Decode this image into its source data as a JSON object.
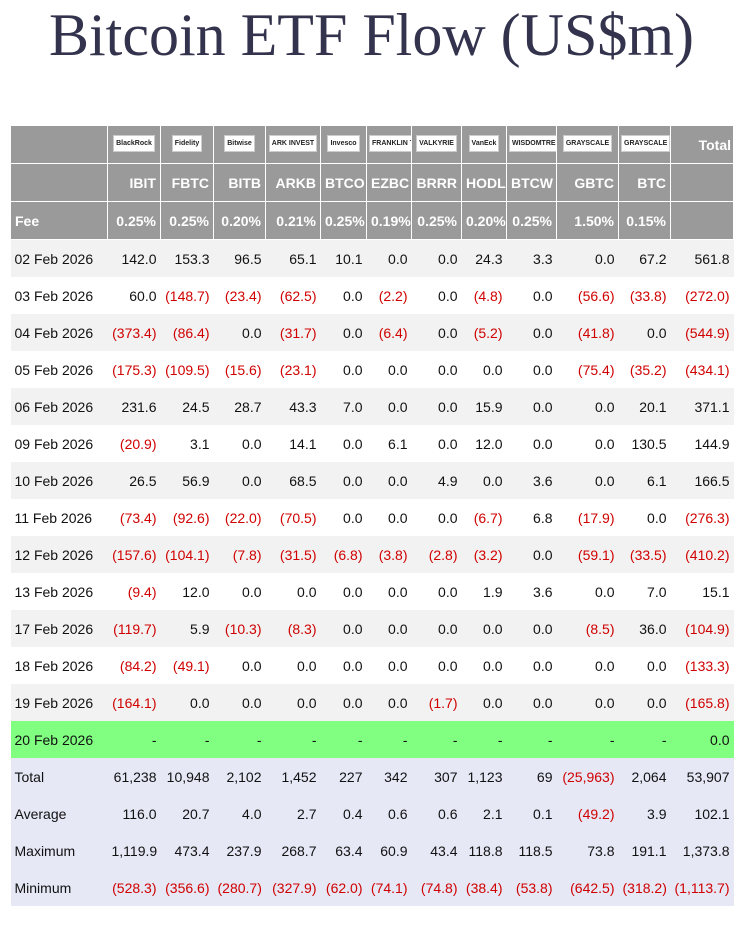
{
  "header": {
    "title": "Bitcoin ETF Flow (US$m)"
  },
  "table": {
    "logos": [
      "BlackRock",
      "Fidelity",
      "Bitwise",
      "ARK INVEST",
      "Invesco",
      "FRANKLIN TEMPLETON",
      "VALKYRIE",
      "VanEck",
      "WISDOMTREE",
      "GRAYSCALE",
      "GRAYSCALE"
    ],
    "total_header": "Total",
    "tickers": [
      "IBIT",
      "FBTC",
      "BITB",
      "ARKB",
      "BTCO",
      "EZBC",
      "BRRR",
      "HODL",
      "BTCW",
      "GBTC",
      "BTC"
    ],
    "fee_label": "Fee",
    "fees": [
      "0.25%",
      "0.25%",
      "0.20%",
      "0.21%",
      "0.25%",
      "0.19%",
      "0.25%",
      "0.20%",
      "0.25%",
      "1.50%",
      "0.15%"
    ],
    "rows": [
      [
        "02 Feb 2026",
        "142.0",
        "153.3",
        "96.5",
        "65.1",
        "10.1",
        "0.0",
        "0.0",
        "24.3",
        "3.3",
        "0.0",
        "67.2",
        "561.8"
      ],
      [
        "03 Feb 2026",
        "60.0",
        "(148.7)",
        "(23.4)",
        "(62.5)",
        "0.0",
        "(2.2)",
        "0.0",
        "(4.8)",
        "0.0",
        "(56.6)",
        "(33.8)",
        "(272.0)"
      ],
      [
        "04 Feb 2026",
        "(373.4)",
        "(86.4)",
        "0.0",
        "(31.7)",
        "0.0",
        "(6.4)",
        "0.0",
        "(5.2)",
        "0.0",
        "(41.8)",
        "0.0",
        "(544.9)"
      ],
      [
        "05 Feb 2026",
        "(175.3)",
        "(109.5)",
        "(15.6)",
        "(23.1)",
        "0.0",
        "0.0",
        "0.0",
        "0.0",
        "0.0",
        "(75.4)",
        "(35.2)",
        "(434.1)"
      ],
      [
        "06 Feb 2026",
        "231.6",
        "24.5",
        "28.7",
        "43.3",
        "7.0",
        "0.0",
        "0.0",
        "15.9",
        "0.0",
        "0.0",
        "20.1",
        "371.1"
      ],
      [
        "09 Feb 2026",
        "(20.9)",
        "3.1",
        "0.0",
        "14.1",
        "0.0",
        "6.1",
        "0.0",
        "12.0",
        "0.0",
        "0.0",
        "130.5",
        "144.9"
      ],
      [
        "10 Feb 2026",
        "26.5",
        "56.9",
        "0.0",
        "68.5",
        "0.0",
        "0.0",
        "4.9",
        "0.0",
        "3.6",
        "0.0",
        "6.1",
        "166.5"
      ],
      [
        "11 Feb 2026",
        "(73.4)",
        "(92.6)",
        "(22.0)",
        "(70.5)",
        "0.0",
        "0.0",
        "0.0",
        "(6.7)",
        "6.8",
        "(17.9)",
        "0.0",
        "(276.3)"
      ],
      [
        "12 Feb 2026",
        "(157.6)",
        "(104.1)",
        "(7.8)",
        "(31.5)",
        "(6.8)",
        "(3.8)",
        "(2.8)",
        "(3.2)",
        "0.0",
        "(59.1)",
        "(33.5)",
        "(410.2)"
      ],
      [
        "13 Feb 2026",
        "(9.4)",
        "12.0",
        "0.0",
        "0.0",
        "0.0",
        "0.0",
        "0.0",
        "1.9",
        "3.6",
        "0.0",
        "7.0",
        "15.1"
      ],
      [
        "17 Feb 2026",
        "(119.7)",
        "5.9",
        "(10.3)",
        "(8.3)",
        "0.0",
        "0.0",
        "0.0",
        "0.0",
        "0.0",
        "(8.5)",
        "36.0",
        "(104.9)"
      ],
      [
        "18 Feb 2026",
        "(84.2)",
        "(49.1)",
        "0.0",
        "0.0",
        "0.0",
        "0.0",
        "0.0",
        "0.0",
        "0.0",
        "0.0",
        "0.0",
        "(133.3)"
      ],
      [
        "19 Feb 2026",
        "(164.1)",
        "0.0",
        "0.0",
        "0.0",
        "0.0",
        "0.0",
        "(1.7)",
        "0.0",
        "0.0",
        "0.0",
        "0.0",
        "(165.8)"
      ],
      [
        "20 Feb 2026",
        "-",
        "-",
        "-",
        "-",
        "-",
        "-",
        "-",
        "-",
        "-",
        "-",
        "-",
        "0.0"
      ]
    ],
    "summary_rows": [
      [
        "Total",
        "61,238",
        "10,948",
        "2,102",
        "1,452",
        "227",
        "342",
        "307",
        "1,123",
        "69",
        "(25,963)",
        "2,064",
        "53,907"
      ],
      [
        "Average",
        "116.0",
        "20.7",
        "4.0",
        "2.7",
        "0.4",
        "0.6",
        "0.6",
        "2.1",
        "0.1",
        "(49.2)",
        "3.9",
        "102.1"
      ],
      [
        "Maximum",
        "1,119.9",
        "473.4",
        "237.9",
        "268.7",
        "63.4",
        "60.9",
        "43.4",
        "118.8",
        "118.5",
        "73.8",
        "191.1",
        "1,373.8"
      ],
      [
        "Minimum",
        "(528.3)",
        "(356.6)",
        "(280.7)",
        "(327.9)",
        "(62.0)",
        "(74.1)",
        "(74.8)",
        "(38.4)",
        "(53.8)",
        "(642.5)",
        "(318.2)",
        "(1,113.7)"
      ]
    ]
  }
}
